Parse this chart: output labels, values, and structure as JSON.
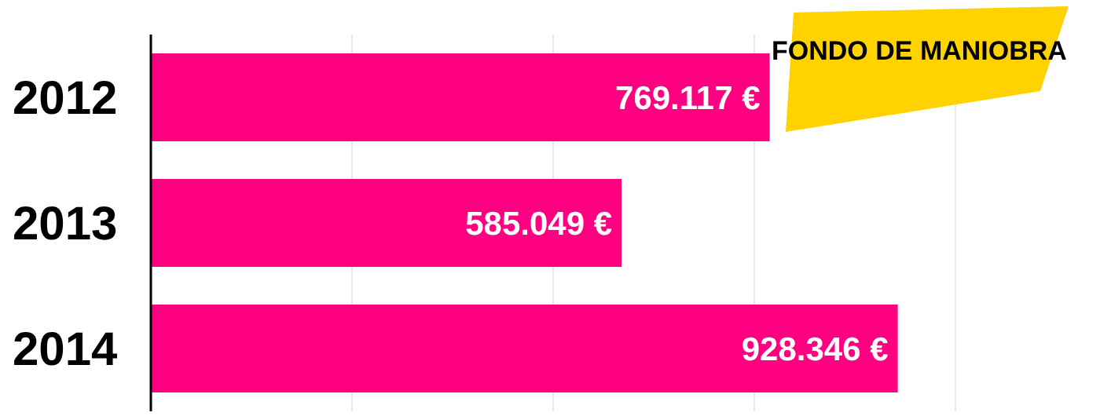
{
  "chart_data": {
    "type": "bar",
    "orientation": "horizontal",
    "title": "FONDO DE MANIOBRA",
    "categories": [
      "2012",
      "2013",
      "2014"
    ],
    "values": [
      769117,
      585049,
      928346
    ],
    "value_labels": [
      "769.117 €",
      "585.049 €",
      "928.346 €"
    ],
    "color": "#ff0080",
    "xlim": [
      0,
      1000000
    ],
    "xticks": [
      {
        "value": 0,
        "label": null
      },
      {
        "value": 250000,
        "label": null
      },
      {
        "value": 500000,
        "label": null
      },
      {
        "value": 750000,
        "label": null
      },
      {
        "value": 1000000,
        "label": null
      }
    ],
    "grid": "x"
  }
}
